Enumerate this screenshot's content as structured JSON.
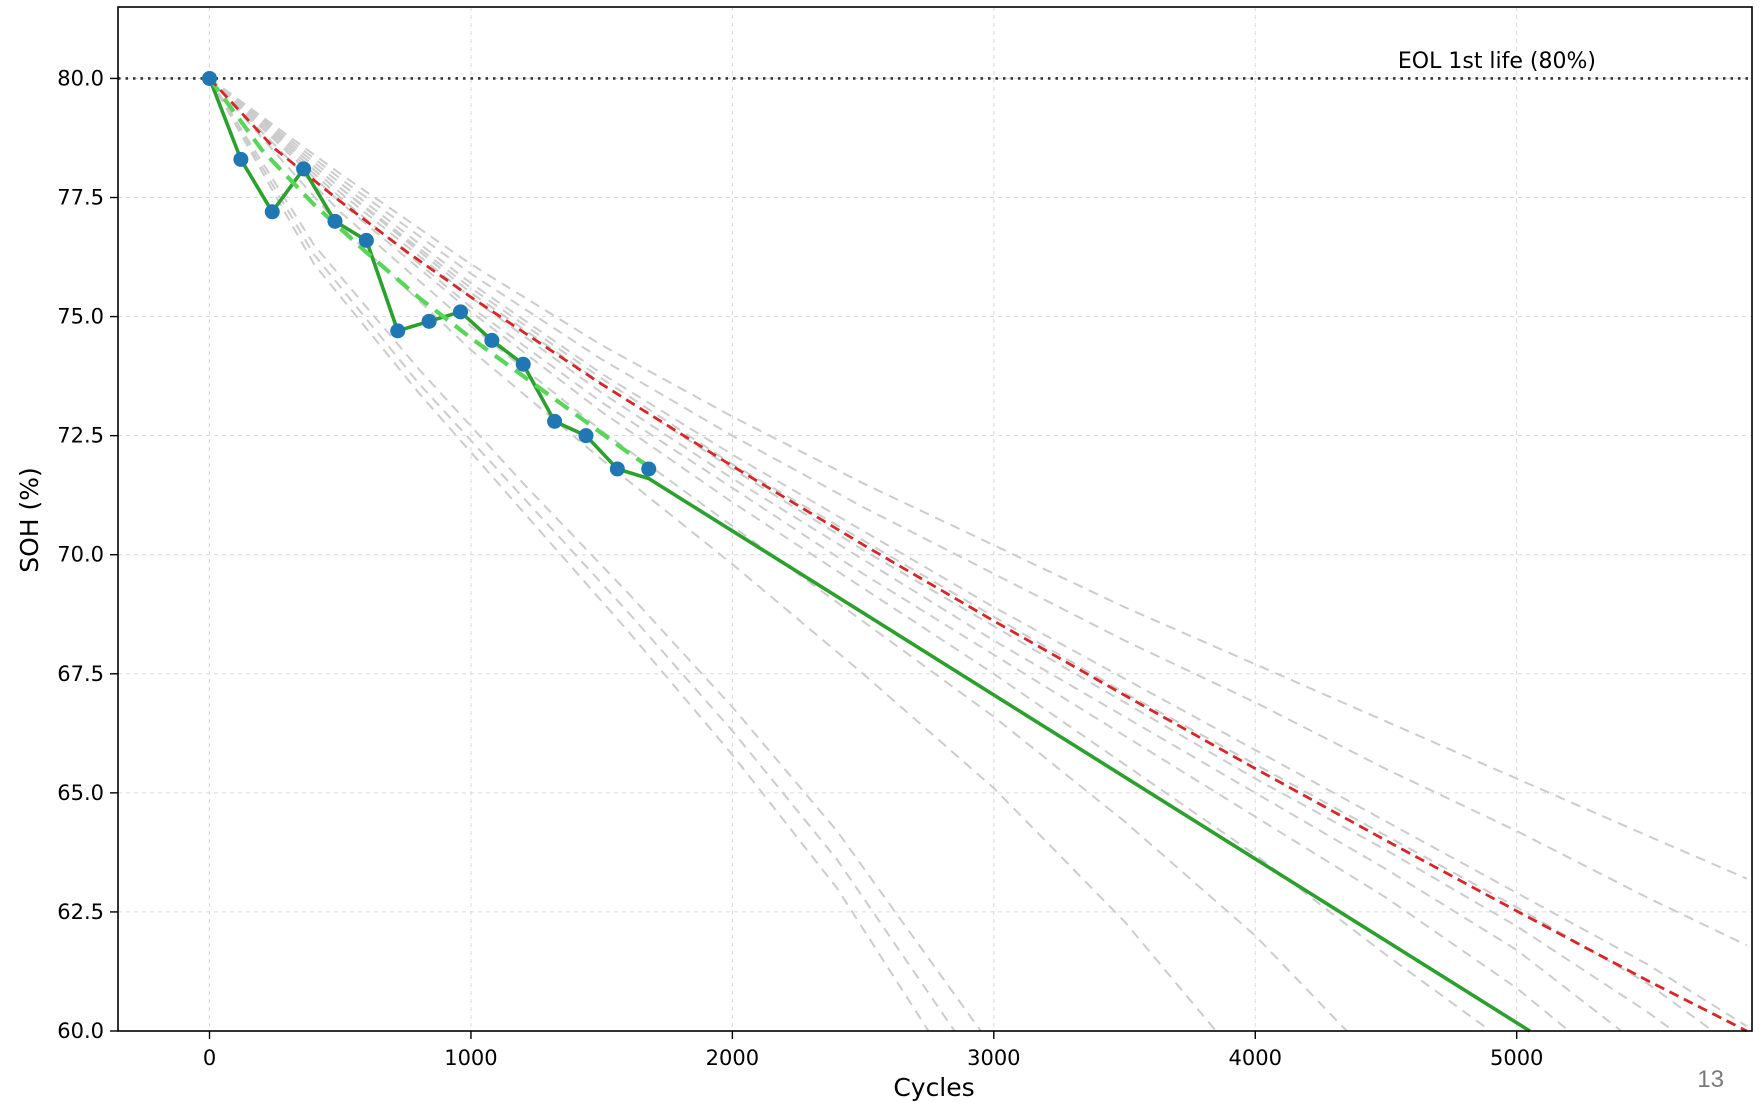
{
  "chart_data": {
    "type": "line",
    "title": "",
    "xlabel": "Cycles",
    "ylabel": "SOH (%)",
    "xlim": [
      -350,
      5900
    ],
    "ylim": [
      60.0,
      81.5
    ],
    "x_ticks": [
      0,
      1000,
      2000,
      3000,
      4000,
      5000
    ],
    "y_ticks": [
      "60.0",
      "62.5",
      "65.0",
      "67.5",
      "70.0",
      "72.5",
      "75.0",
      "77.5",
      "80.0"
    ],
    "grid": true,
    "reference_line": {
      "y": 80.0,
      "label": "EOL 1st life (80%)",
      "style": "dotted",
      "color": "#333333"
    },
    "series": [
      {
        "style": "markers",
        "color": "#1f77b4",
        "x": [
          0,
          120,
          240,
          360,
          480,
          600,
          720,
          840,
          960,
          1080,
          1200,
          1320,
          1440,
          1560,
          1680
        ],
        "y": [
          80.0,
          78.3,
          77.2,
          78.1,
          77.0,
          76.6,
          74.7,
          74.9,
          75.1,
          74.5,
          74.0,
          72.8,
          72.5,
          71.8,
          71.8
        ]
      },
      {
        "style": "solid",
        "color": "#2ca02c",
        "x": [
          0,
          120,
          240,
          360,
          480,
          600,
          720,
          840,
          960,
          1080,
          1200,
          1320,
          1440,
          1560,
          1680,
          5050
        ],
        "y": [
          80.0,
          78.3,
          77.2,
          78.1,
          77.0,
          76.6,
          74.7,
          74.9,
          75.1,
          74.5,
          74.0,
          72.8,
          72.5,
          71.8,
          71.6,
          60.0
        ]
      },
      {
        "style": "dashed",
        "color": "#59d659",
        "x": [
          0,
          200,
          400,
          600,
          800,
          1000,
          1200,
          1400,
          1600,
          1680
        ],
        "y": [
          80.0,
          78.5,
          77.35,
          76.35,
          75.4,
          74.55,
          73.75,
          72.95,
          72.15,
          71.85
        ]
      },
      {
        "style": "dashed",
        "color": "#d62728",
        "x": [
          0,
          250,
          500,
          750,
          1000,
          1500,
          2000,
          2500,
          3000,
          3500,
          4000,
          4500,
          5000,
          5500,
          5880
        ],
        "y": [
          80.0,
          78.52,
          77.42,
          76.38,
          75.41,
          73.58,
          71.86,
          70.21,
          68.61,
          67.05,
          65.51,
          64.0,
          62.52,
          61.06,
          60.0
        ]
      }
    ],
    "projection_lines": {
      "color": "#cccccc",
      "style": "dashed",
      "curves": [
        {
          "x": [
            0,
            400,
            800,
            1200,
            1600,
            2000,
            2400,
            2750
          ],
          "y": [
            80.0,
            76.1,
            73.4,
            70.9,
            68.4,
            65.8,
            63.0,
            60.0
          ]
        },
        {
          "x": [
            0,
            400,
            800,
            1200,
            1600,
            2000,
            2400,
            2850
          ],
          "y": [
            80.0,
            76.3,
            73.6,
            71.2,
            68.8,
            66.3,
            63.6,
            60.0
          ]
        },
        {
          "x": [
            0,
            400,
            800,
            1200,
            1600,
            2000,
            2400,
            2950
          ],
          "y": [
            80.0,
            76.5,
            73.9,
            71.5,
            69.2,
            66.8,
            64.2,
            60.0
          ]
        },
        {
          "x": [
            0,
            500,
            1000,
            1500,
            2000,
            2500,
            3000,
            3500,
            3850
          ],
          "y": [
            80.0,
            76.9,
            74.3,
            72.0,
            69.8,
            67.5,
            65.1,
            62.3,
            60.0
          ]
        },
        {
          "x": [
            0,
            500,
            1000,
            1500,
            2000,
            2500,
            3000,
            3500,
            4000,
            4350
          ],
          "y": [
            80.0,
            77.2,
            74.8,
            72.6,
            70.6,
            68.6,
            66.6,
            64.4,
            62.0,
            60.0
          ]
        },
        {
          "x": [
            0,
            500,
            1000,
            1500,
            2000,
            2500,
            3000,
            3500,
            4000,
            4500,
            4900
          ],
          "y": [
            80.0,
            77.4,
            75.1,
            73.0,
            71.1,
            69.3,
            67.5,
            65.6,
            63.7,
            61.6,
            60.0
          ]
        },
        {
          "x": [
            0,
            500,
            1000,
            1500,
            2000,
            2500,
            3000,
            3500,
            4000,
            4500,
            5000,
            5200
          ],
          "y": [
            80.0,
            77.5,
            75.2,
            73.2,
            71.4,
            69.6,
            67.9,
            66.2,
            64.5,
            62.8,
            60.9,
            60.0
          ]
        },
        {
          "x": [
            0,
            500,
            1000,
            1500,
            2000,
            2500,
            3000,
            3500,
            4000,
            4500,
            5000,
            5400
          ],
          "y": [
            80.0,
            77.6,
            75.4,
            73.4,
            71.6,
            69.9,
            68.2,
            66.6,
            65.0,
            63.4,
            61.7,
            60.0
          ]
        },
        {
          "x": [
            0,
            500,
            1000,
            1500,
            2000,
            2500,
            3000,
            3500,
            4000,
            4500,
            5000,
            5500,
            5600
          ],
          "y": [
            80.0,
            77.7,
            75.5,
            73.6,
            71.8,
            70.1,
            68.5,
            66.9,
            65.3,
            63.8,
            62.2,
            60.4,
            60.0
          ]
        },
        {
          "x": [
            0,
            500,
            1000,
            1500,
            2000,
            2500,
            3000,
            3500,
            4000,
            4500,
            5000,
            5500,
            5750
          ],
          "y": [
            80.0,
            77.7,
            75.6,
            73.7,
            71.9,
            70.3,
            68.7,
            67.1,
            65.6,
            64.1,
            62.6,
            61.0,
            60.0
          ]
        },
        {
          "x": [
            0,
            500,
            1000,
            1500,
            2000,
            2500,
            3000,
            3500,
            4000,
            4500,
            5000,
            5500,
            5880
          ],
          "y": [
            80.0,
            77.8,
            75.7,
            73.8,
            72.1,
            70.5,
            68.9,
            67.4,
            65.9,
            64.4,
            62.9,
            61.4,
            60.1
          ]
        },
        {
          "x": [
            0,
            500,
            1000,
            1500,
            2000,
            2500,
            3000,
            3500,
            4000,
            4500,
            5000,
            5500,
            5880
          ],
          "y": [
            80.0,
            77.9,
            75.9,
            74.1,
            72.5,
            71.0,
            69.6,
            68.2,
            66.9,
            65.5,
            64.2,
            62.8,
            61.8
          ]
        },
        {
          "x": [
            0,
            500,
            1000,
            1500,
            2000,
            2500,
            3000,
            3500,
            4000,
            4500,
            5000,
            5500,
            5880
          ],
          "y": [
            80.0,
            78.0,
            76.1,
            74.4,
            72.9,
            71.5,
            70.2,
            68.9,
            67.7,
            66.5,
            65.3,
            64.1,
            63.2
          ]
        }
      ]
    }
  },
  "page_number": "13"
}
